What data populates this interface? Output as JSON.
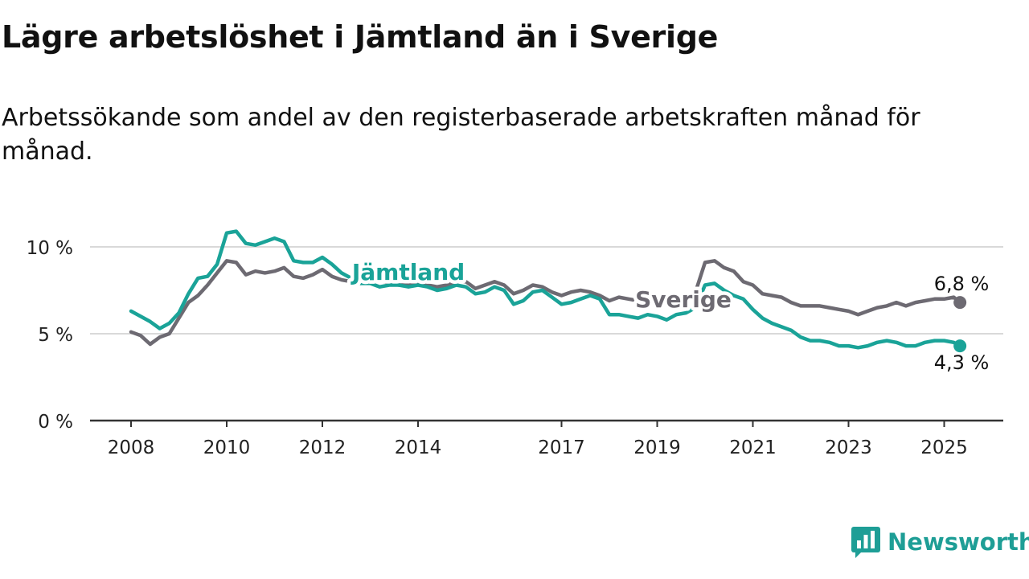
{
  "header": {
    "title": "Lägre arbetslöshet i Jämtland än i Sverige",
    "subtitle": "Arbetssökande som andel av den registerbaserade arbetskraften månad för månad."
  },
  "branding": {
    "logo_text": "Newsworthy",
    "logo_icon": "bar-chart-speech-bubble-icon"
  },
  "colors": {
    "jamtland": "#1aa398",
    "sverige": "#6d6a72",
    "grid": "#d9d9d9",
    "axis": "#333333",
    "logo": "#1e9e96"
  },
  "chart_data": {
    "type": "line",
    "title": "Lägre arbetslöshet i Jämtland än i Sverige",
    "subtitle": "Arbetssökande som andel av den registerbaserade arbetskraften månad för månad.",
    "xlabel": "",
    "ylabel": "",
    "ylim": [
      0,
      10
    ],
    "yticks": [
      0,
      5,
      10
    ],
    "ytick_labels": [
      "0 %",
      "5 %",
      "10 %"
    ],
    "xlim": [
      2008.0,
      2025.9
    ],
    "xticks": [
      2008,
      2010,
      2012,
      2014,
      2017,
      2019,
      2021,
      2023,
      2025
    ],
    "xtick_labels": [
      "2008",
      "2010",
      "2012",
      "2014",
      "2017",
      "2019",
      "2021",
      "2023",
      "2025"
    ],
    "grid": true,
    "legend": "inline labels",
    "series": [
      {
        "name": "Jämtland",
        "end_label": "4,3 %",
        "x": [
          2008.0,
          2008.2,
          2008.4,
          2008.6,
          2008.8,
          2009.0,
          2009.2,
          2009.4,
          2009.6,
          2009.8,
          2010.0,
          2010.2,
          2010.4,
          2010.6,
          2010.8,
          2011.0,
          2011.2,
          2011.4,
          2011.6,
          2011.8,
          2012.0,
          2012.2,
          2012.4,
          2012.6,
          2012.8,
          2013.0,
          2013.2,
          2013.4,
          2013.6,
          2013.8,
          2014.0,
          2014.2,
          2014.4,
          2014.6,
          2014.8,
          2015.0,
          2015.2,
          2015.4,
          2015.6,
          2015.8,
          2016.0,
          2016.2,
          2016.4,
          2016.6,
          2016.8,
          2017.0,
          2017.2,
          2017.4,
          2017.6,
          2017.8,
          2018.0,
          2018.2,
          2018.4,
          2018.6,
          2018.8,
          2019.0,
          2019.2,
          2019.4,
          2019.6,
          2019.8,
          2020.0,
          2020.2,
          2020.4,
          2020.6,
          2020.8,
          2021.0,
          2021.2,
          2021.4,
          2021.6,
          2021.8,
          2022.0,
          2022.2,
          2022.4,
          2022.6,
          2022.8,
          2023.0,
          2023.2,
          2023.4,
          2023.6,
          2023.8,
          2024.0,
          2024.2,
          2024.4,
          2024.6,
          2024.8,
          2025.0,
          2025.2,
          2025.33
        ],
        "y": [
          6.3,
          6.0,
          5.7,
          5.3,
          5.6,
          6.2,
          7.3,
          8.2,
          8.3,
          9.0,
          10.8,
          10.9,
          10.2,
          10.1,
          10.3,
          10.5,
          10.3,
          9.2,
          9.1,
          9.1,
          9.4,
          9.0,
          8.5,
          8.2,
          7.9,
          7.9,
          7.7,
          7.8,
          7.8,
          7.7,
          7.8,
          7.7,
          7.5,
          7.6,
          7.8,
          7.7,
          7.3,
          7.4,
          7.7,
          7.5,
          6.7,
          6.9,
          7.4,
          7.5,
          7.1,
          6.7,
          6.8,
          7.0,
          7.2,
          7.0,
          6.1,
          6.1,
          6.0,
          5.9,
          6.1,
          6.0,
          5.8,
          6.1,
          6.2,
          6.5,
          7.8,
          7.9,
          7.5,
          7.2,
          7.0,
          6.4,
          5.9,
          5.6,
          5.4,
          5.2,
          4.8,
          4.6,
          4.6,
          4.5,
          4.3,
          4.3,
          4.2,
          4.3,
          4.5,
          4.6,
          4.5,
          4.3,
          4.3,
          4.5,
          4.6,
          4.6,
          4.5,
          4.3
        ]
      },
      {
        "name": "Sverige",
        "end_label": "6,8 %",
        "x": [
          2008.0,
          2008.2,
          2008.4,
          2008.6,
          2008.8,
          2009.0,
          2009.2,
          2009.4,
          2009.6,
          2009.8,
          2010.0,
          2010.2,
          2010.4,
          2010.6,
          2010.8,
          2011.0,
          2011.2,
          2011.4,
          2011.6,
          2011.8,
          2012.0,
          2012.2,
          2012.4,
          2012.6,
          2012.8,
          2013.0,
          2013.2,
          2013.4,
          2013.6,
          2013.8,
          2014.0,
          2014.2,
          2014.4,
          2014.6,
          2014.8,
          2015.0,
          2015.2,
          2015.4,
          2015.6,
          2015.8,
          2016.0,
          2016.2,
          2016.4,
          2016.6,
          2016.8,
          2017.0,
          2017.2,
          2017.4,
          2017.6,
          2017.8,
          2018.0,
          2018.2,
          2018.4,
          2018.6,
          2018.8,
          2019.0,
          2019.2,
          2019.4,
          2019.6,
          2019.8,
          2020.0,
          2020.2,
          2020.4,
          2020.6,
          2020.8,
          2021.0,
          2021.2,
          2021.4,
          2021.6,
          2021.8,
          2022.0,
          2022.2,
          2022.4,
          2022.6,
          2022.8,
          2023.0,
          2023.2,
          2023.4,
          2023.6,
          2023.8,
          2024.0,
          2024.2,
          2024.4,
          2024.6,
          2024.8,
          2025.0,
          2025.2,
          2025.33
        ],
        "y": [
          5.1,
          4.9,
          4.4,
          4.8,
          5.0,
          5.9,
          6.8,
          7.2,
          7.8,
          8.5,
          9.2,
          9.1,
          8.4,
          8.6,
          8.5,
          8.6,
          8.8,
          8.3,
          8.2,
          8.4,
          8.7,
          8.3,
          8.1,
          8.0,
          7.9,
          8.0,
          8.1,
          7.9,
          7.8,
          7.8,
          7.9,
          7.8,
          7.7,
          7.8,
          8.0,
          8.0,
          7.6,
          7.8,
          8.0,
          7.8,
          7.3,
          7.5,
          7.8,
          7.7,
          7.4,
          7.2,
          7.4,
          7.5,
          7.4,
          7.2,
          6.9,
          7.1,
          7.0,
          6.9,
          6.9,
          6.8,
          6.8,
          7.0,
          7.2,
          7.4,
          9.1,
          9.2,
          8.8,
          8.6,
          8.0,
          7.8,
          7.3,
          7.2,
          7.1,
          6.8,
          6.6,
          6.6,
          6.6,
          6.5,
          6.4,
          6.3,
          6.1,
          6.3,
          6.5,
          6.6,
          6.8,
          6.6,
          6.8,
          6.9,
          7.0,
          7.0,
          7.1,
          6.8
        ]
      }
    ]
  }
}
